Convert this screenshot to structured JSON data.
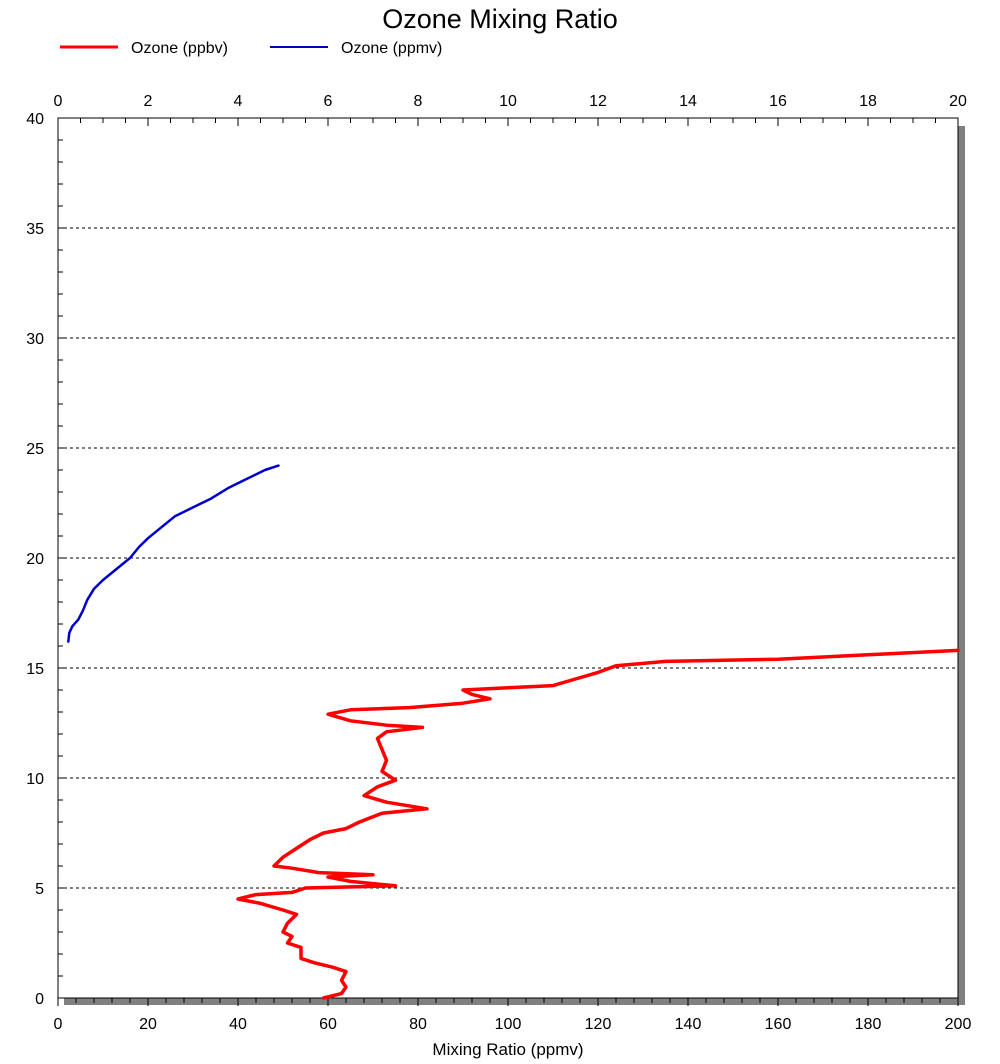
{
  "chart_data": {
    "type": "line",
    "title": "Ozone Mixing Ratio",
    "xlabel": "Mixing Ratio (ppmv)",
    "ylabel": "",
    "x_bottom": {
      "range": [
        0,
        200
      ],
      "ticks": [
        "0",
        "20",
        "40",
        "60",
        "80",
        "100",
        "120",
        "140",
        "160",
        "180",
        "200"
      ]
    },
    "x_top": {
      "range": [
        0,
        20
      ],
      "ticks": [
        "0",
        "2",
        "4",
        "6",
        "8",
        "10",
        "12",
        "14",
        "16",
        "18",
        "20"
      ]
    },
    "y": {
      "range": [
        0,
        40
      ],
      "ticks": [
        "0",
        "5",
        "10",
        "15",
        "20",
        "25",
        "30",
        "35",
        "40"
      ]
    },
    "grid": "horizontal dotted at major y ticks",
    "legend_position": "top-left",
    "series": [
      {
        "name": "Ozone (ppbv)",
        "color": "#ff0000",
        "axis": "bottom",
        "points": [
          [
            59,
            0.0
          ],
          [
            63,
            0.2
          ],
          [
            64,
            0.5
          ],
          [
            63,
            0.8
          ],
          [
            64,
            1.2
          ],
          [
            61,
            1.4
          ],
          [
            57,
            1.6
          ],
          [
            54,
            1.8
          ],
          [
            54,
            2.3
          ],
          [
            51,
            2.5
          ],
          [
            52,
            2.8
          ],
          [
            50,
            3.0
          ],
          [
            51,
            3.4
          ],
          [
            53,
            3.8
          ],
          [
            50,
            4.0
          ],
          [
            45,
            4.3
          ],
          [
            40,
            4.5
          ],
          [
            44,
            4.7
          ],
          [
            52,
            4.8
          ],
          [
            55,
            5.0
          ],
          [
            75,
            5.1
          ],
          [
            65,
            5.3
          ],
          [
            60,
            5.5
          ],
          [
            70,
            5.6
          ],
          [
            58,
            5.7
          ],
          [
            52,
            5.9
          ],
          [
            48,
            6.0
          ],
          [
            50,
            6.4
          ],
          [
            53,
            6.8
          ],
          [
            56,
            7.2
          ],
          [
            59,
            7.5
          ],
          [
            64,
            7.7
          ],
          [
            67,
            8.0
          ],
          [
            72,
            8.4
          ],
          [
            82,
            8.6
          ],
          [
            73,
            8.9
          ],
          [
            68,
            9.2
          ],
          [
            71,
            9.6
          ],
          [
            75,
            9.9
          ],
          [
            72,
            10.3
          ],
          [
            73,
            10.8
          ],
          [
            72,
            11.3
          ],
          [
            71,
            11.8
          ],
          [
            73,
            12.1
          ],
          [
            81,
            12.3
          ],
          [
            73,
            12.4
          ],
          [
            65,
            12.6
          ],
          [
            60,
            12.9
          ],
          [
            65,
            13.1
          ],
          [
            78,
            13.2
          ],
          [
            90,
            13.4
          ],
          [
            96,
            13.6
          ],
          [
            92,
            13.8
          ],
          [
            90,
            14.0
          ],
          [
            100,
            14.1
          ],
          [
            110,
            14.2
          ],
          [
            115,
            14.5
          ],
          [
            120,
            14.8
          ],
          [
            124,
            15.1
          ],
          [
            135,
            15.3
          ],
          [
            160,
            15.4
          ],
          [
            180,
            15.6
          ],
          [
            195,
            15.75
          ],
          [
            200,
            15.8
          ]
        ]
      },
      {
        "name": "Ozone (ppmv)",
        "color": "#0000cc",
        "axis": "top",
        "points": [
          [
            0.23,
            16.2
          ],
          [
            0.25,
            16.6
          ],
          [
            0.32,
            16.9
          ],
          [
            0.45,
            17.2
          ],
          [
            0.55,
            17.6
          ],
          [
            0.65,
            18.1
          ],
          [
            0.8,
            18.6
          ],
          [
            1.0,
            19.0
          ],
          [
            1.3,
            19.5
          ],
          [
            1.6,
            20.0
          ],
          [
            1.8,
            20.5
          ],
          [
            2.0,
            20.9
          ],
          [
            2.3,
            21.4
          ],
          [
            2.6,
            21.9
          ],
          [
            3.0,
            22.3
          ],
          [
            3.4,
            22.7
          ],
          [
            3.8,
            23.2
          ],
          [
            4.2,
            23.6
          ],
          [
            4.6,
            24.0
          ],
          [
            4.9,
            24.2
          ]
        ]
      }
    ]
  }
}
